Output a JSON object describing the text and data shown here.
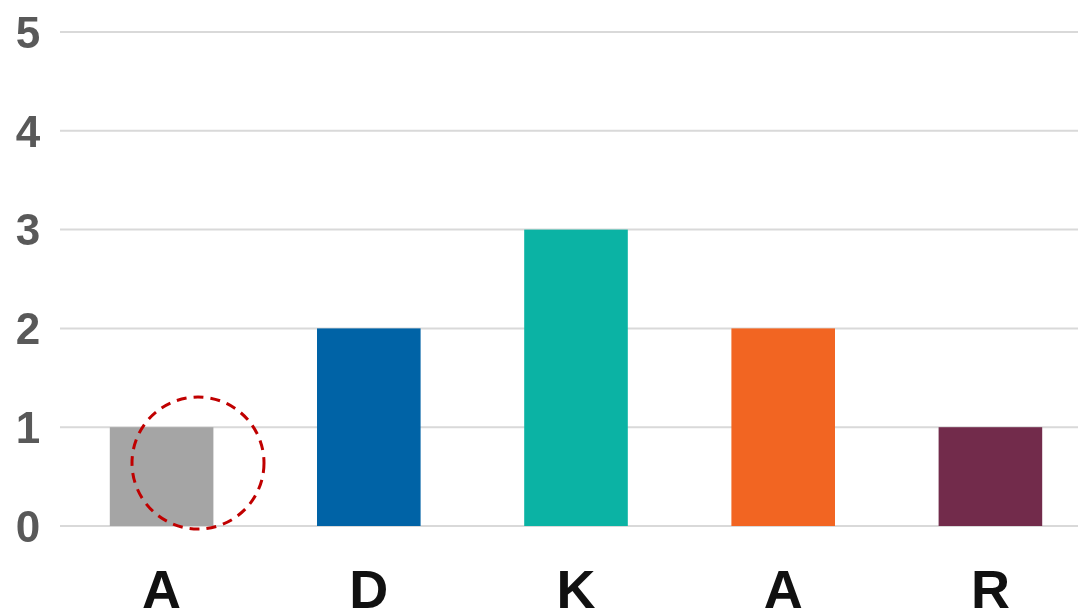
{
  "chart_data": {
    "type": "bar",
    "categories": [
      "A",
      "D",
      "K",
      "A",
      "R"
    ],
    "values": [
      1,
      2,
      3,
      2,
      1
    ],
    "colors": [
      "#a5a5a5",
      "#0063a6",
      "#0bb3a4",
      "#f26522",
      "#722b4b"
    ],
    "ylim": [
      0,
      5
    ],
    "yticks": [
      0,
      1,
      2,
      3,
      4,
      5
    ],
    "grid": "y"
  }
}
